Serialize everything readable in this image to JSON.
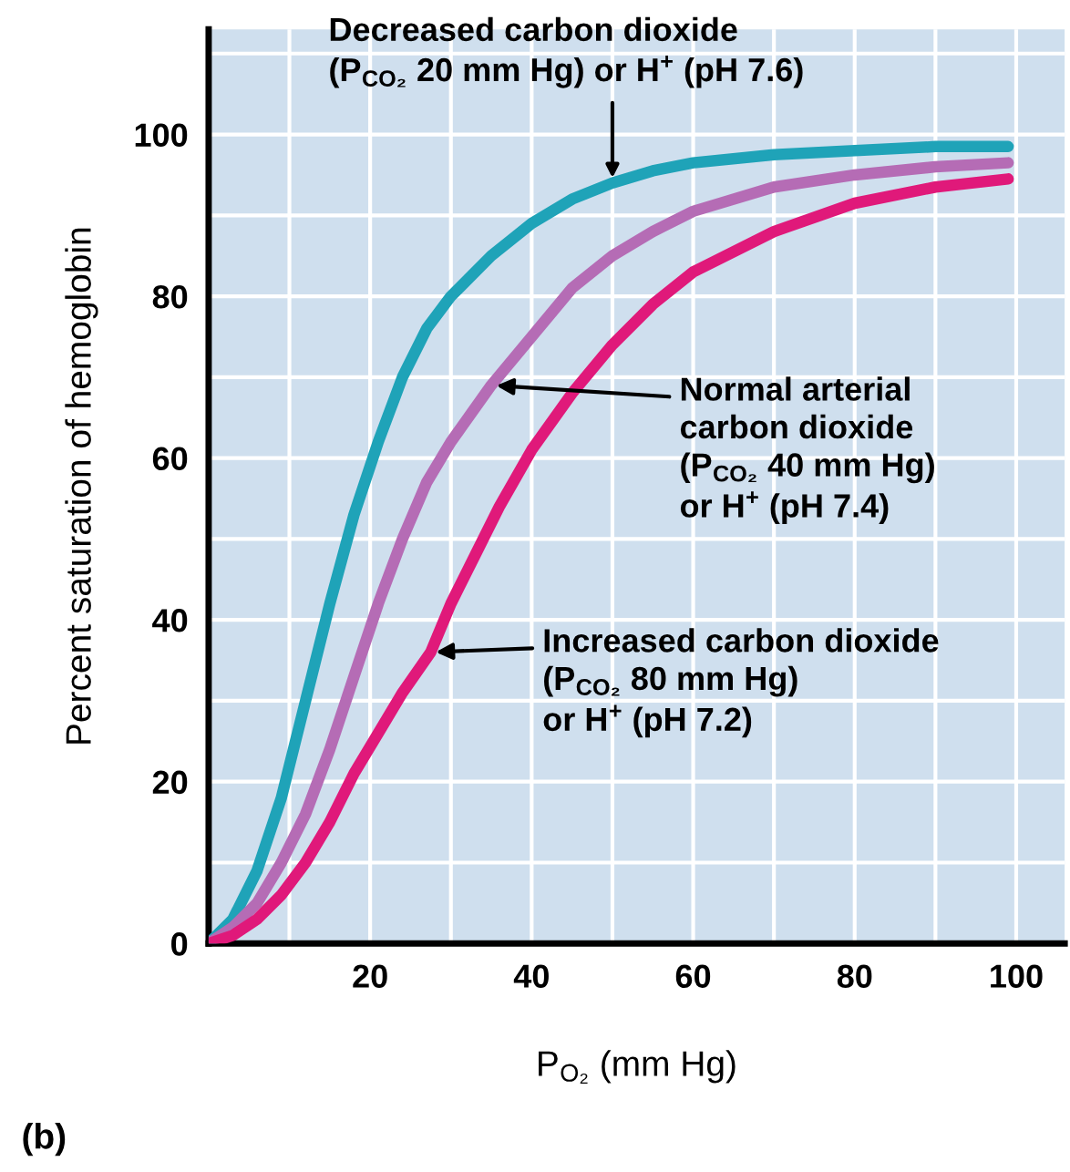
{
  "chart_data": {
    "type": "line",
    "xlabel": "P$_{O₂}$ (mm Hg)",
    "ylabel": "Percent saturation of hemoglobin",
    "xlim": [
      0,
      106
    ],
    "ylim": [
      0,
      113
    ],
    "xticks": [
      {
        "value": 10,
        "label": null
      },
      20,
      {
        "value": 30,
        "label": null
      },
      40,
      {
        "value": 50,
        "label": null
      },
      60,
      {
        "value": 70,
        "label": null
      },
      80,
      {
        "value": 90,
        "label": null
      },
      100
    ],
    "yticks": [
      0,
      {
        "value": 10,
        "label": null
      },
      20,
      {
        "value": 30,
        "label": null
      },
      40,
      {
        "value": 50,
        "label": null
      },
      60,
      {
        "value": 70,
        "label": null
      },
      80,
      {
        "value": 90,
        "label": null
      },
      100,
      {
        "value": 110,
        "label": null
      }
    ],
    "grid": true,
    "series": [
      {
        "color": "#1fa3b8",
        "x": [
          0,
          3,
          6,
          9,
          12,
          15,
          18,
          21,
          24,
          27,
          30,
          35,
          40,
          45,
          50,
          55,
          60,
          70,
          80,
          90,
          99
        ],
        "values": [
          0,
          3,
          9,
          18,
          30,
          42,
          53,
          62,
          70,
          76,
          80,
          85,
          89,
          92,
          94,
          95.5,
          96.5,
          97.5,
          98,
          98.5,
          98.5
        ]
      },
      {
        "color": "#b56cb5",
        "x": [
          0,
          3,
          6,
          9,
          12,
          15,
          18,
          21,
          24,
          27,
          30,
          35,
          40,
          45,
          50,
          55,
          60,
          70,
          80,
          90,
          99
        ],
        "values": [
          0,
          2,
          5,
          10,
          16,
          24,
          33,
          42,
          50,
          57,
          62,
          69,
          75,
          81,
          85,
          88,
          90.5,
          93.5,
          95,
          96,
          96.5
        ]
      },
      {
        "color": "#e0197a",
        "x": [
          0,
          3,
          6,
          9,
          12,
          15,
          18,
          21,
          24,
          27.5,
          30,
          33,
          36,
          40,
          45,
          50,
          55,
          60,
          70,
          80,
          90,
          99
        ],
        "values": [
          0,
          1,
          3,
          6,
          10,
          15,
          21,
          26,
          31,
          36,
          42,
          48,
          54,
          61,
          68,
          74,
          79,
          83,
          88,
          91.5,
          93.5,
          94.5
        ]
      }
    ],
    "annotations": [
      {
        "text": "Decreased carbon dioxide\n(P$_{CO₂}$ 20 mm Hg) or H$^{+}$ (pH 7.6)",
        "x": 50,
        "y": 94
      },
      {
        "text": "Normal arterial\ncarbon dioxide\n(P$_{CO₂}$ 40 mm Hg)\nor H$^{+}$ (pH 7.4)",
        "x": 35,
        "y": 69
      },
      {
        "text": "Increased carbon dioxide\n(P$_{CO₂}$ 80 mm Hg)\nor H$^{+}$ (pH 7.2)",
        "x": 27.5,
        "y": 36
      },
      "(b)"
    ]
  }
}
